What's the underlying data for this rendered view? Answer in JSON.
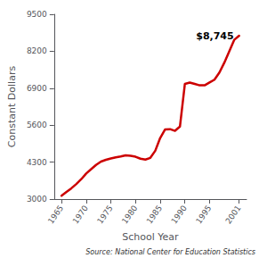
{
  "chart_data": {
    "type": "line",
    "xlabel": "School Year",
    "ylabel": "Constant Dollars",
    "source": "Source: National Center for Education Statistics",
    "annotation": "$8,745",
    "x": [
      1965,
      1966,
      1967,
      1968,
      1969,
      1970,
      1971,
      1972,
      1973,
      1974,
      1975,
      1976,
      1977,
      1978,
      1979,
      1980,
      1981,
      1982,
      1983,
      1984,
      1985,
      1986,
      1987,
      1988,
      1989,
      1990,
      1991,
      1992,
      1993,
      1994,
      1995,
      1996,
      1997,
      1998,
      1999,
      2000,
      2001
    ],
    "values": [
      3120,
      3250,
      3380,
      3530,
      3700,
      3900,
      4050,
      4200,
      4320,
      4380,
      4430,
      4470,
      4500,
      4540,
      4520,
      4490,
      4420,
      4390,
      4450,
      4700,
      5150,
      5450,
      5460,
      5400,
      5550,
      7050,
      7100,
      7050,
      7000,
      7000,
      7100,
      7200,
      7450,
      7800,
      8200,
      8600,
      8745
    ],
    "color": "#CC0000",
    "xlim": [
      1963.5,
      2002.5
    ],
    "xticks": [
      1965,
      1970,
      1975,
      1980,
      1985,
      1990,
      1995,
      2001
    ],
    "ylim": [
      3000,
      9500
    ],
    "yticks": [
      3000,
      4300,
      5600,
      6900,
      8200,
      9500
    ],
    "grid": false
  }
}
